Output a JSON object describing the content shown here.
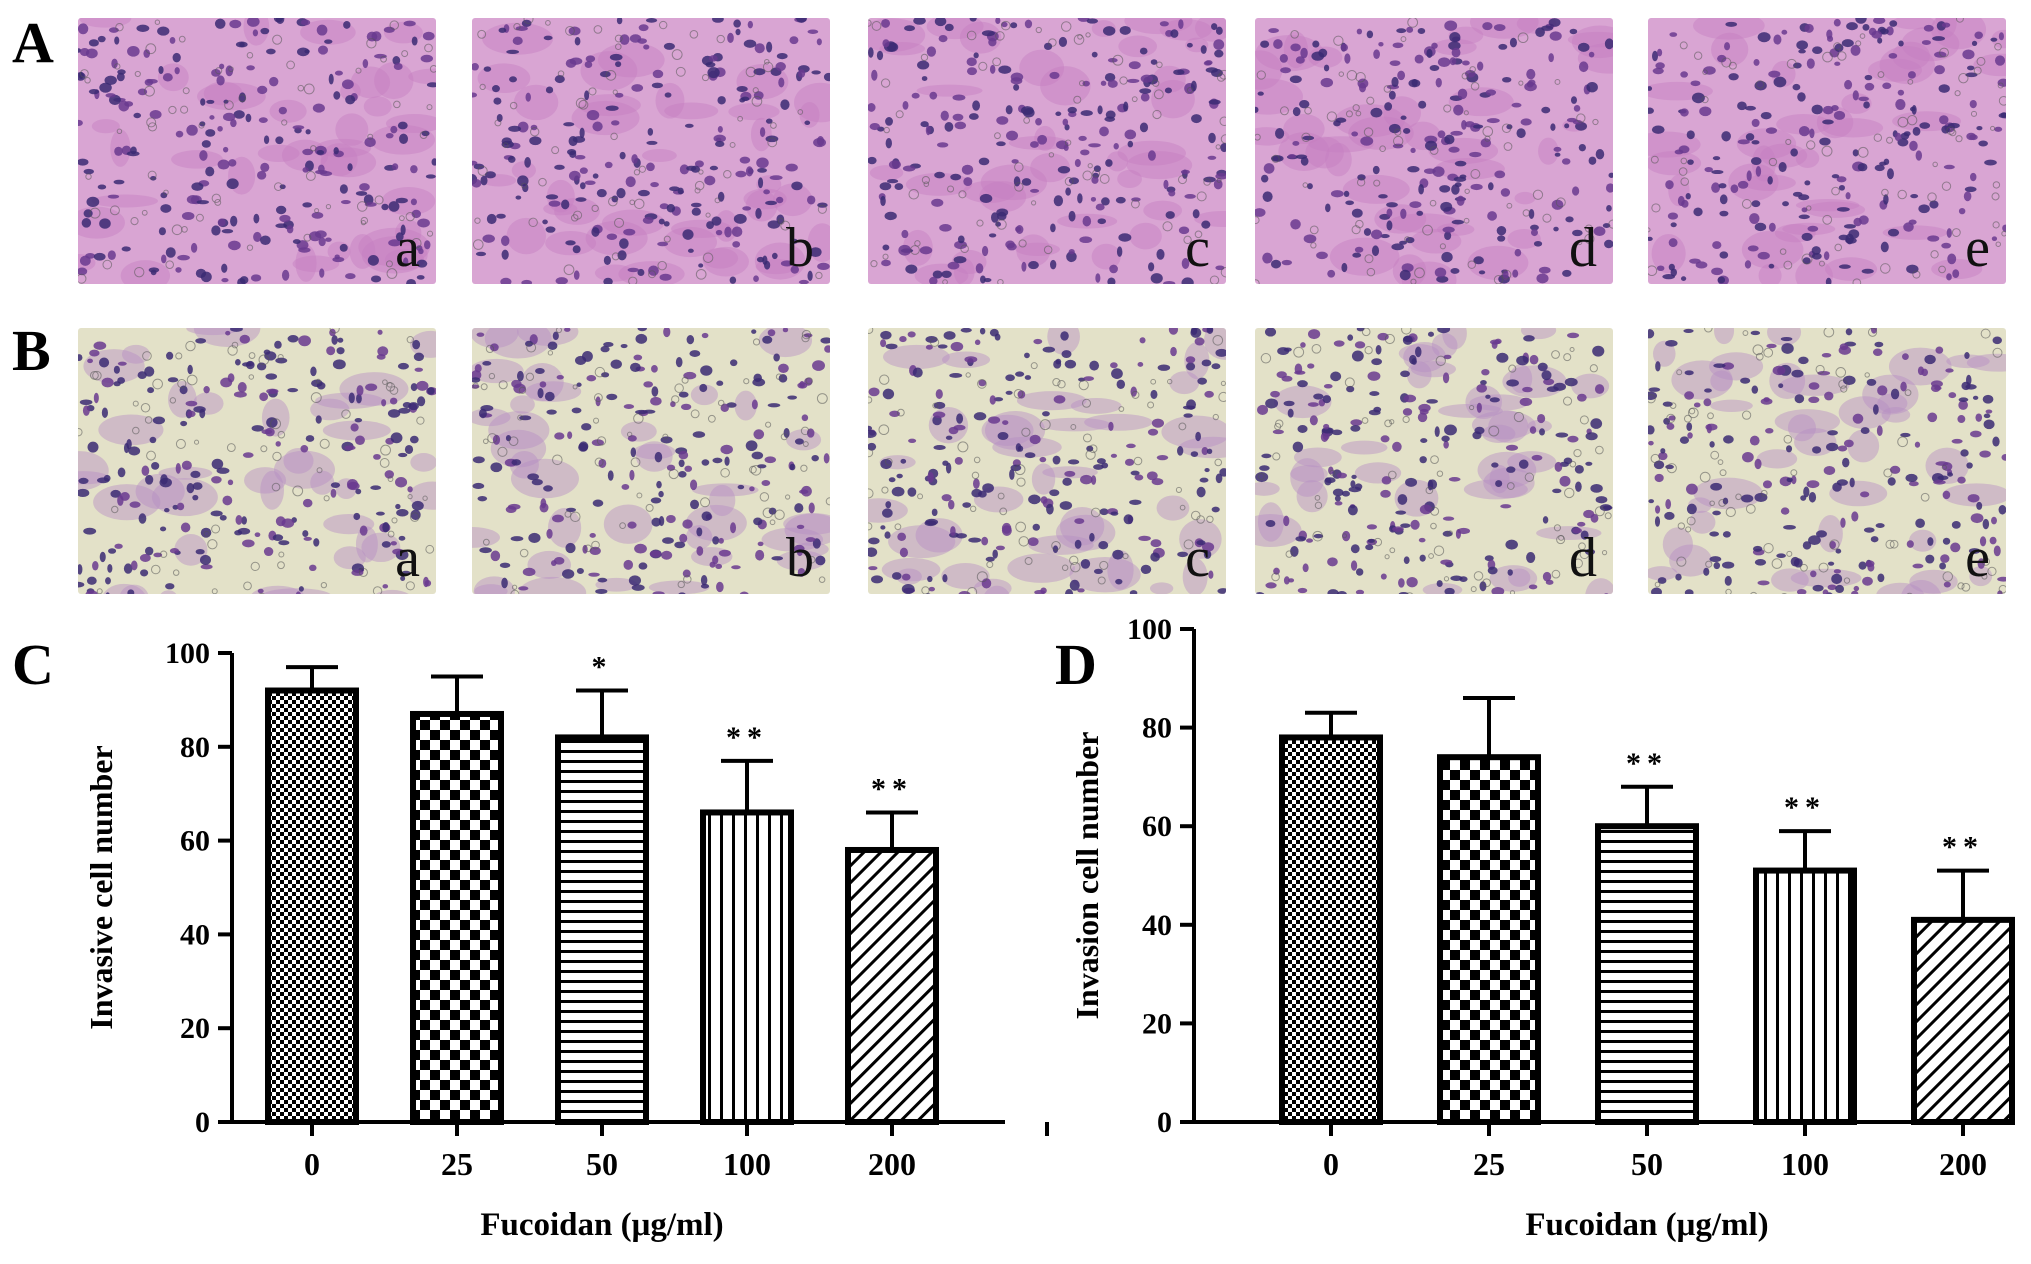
{
  "panel_labels": {
    "a": "A",
    "b": "B",
    "c": "C",
    "d": "D"
  },
  "micrograph_labels": [
    "a",
    "b",
    "c",
    "d",
    "e"
  ],
  "colors": {
    "stain": "#6a3a8f",
    "nucleus": "#3b2a73",
    "row_a_background": "#d9a5d3",
    "row_b_background": "#e3e1c8"
  },
  "chart_data": [
    {
      "type": "bar",
      "panel": "C",
      "categories": [
        "0",
        "25",
        "50",
        "100",
        "200"
      ],
      "values": [
        92,
        87,
        82,
        66,
        58
      ],
      "errors": [
        5,
        8,
        10,
        11,
        8
      ],
      "significance": [
        "",
        "",
        "*",
        "**",
        "**"
      ],
      "patterns": [
        "fine-checker",
        "checker",
        "horizontal-lines",
        "vertical-lines",
        "diagonal-lines"
      ],
      "xlabel": "Fucoidan (μg/ml)",
      "ylabel": "Invasive cell number",
      "ylim": [
        0,
        100
      ],
      "yticks": [
        "0",
        "20",
        "40",
        "60",
        "80",
        "100"
      ],
      "grid": false
    },
    {
      "type": "bar",
      "panel": "D",
      "categories": [
        "0",
        "25",
        "50",
        "100",
        "200"
      ],
      "values": [
        78,
        74,
        60,
        51,
        41
      ],
      "errors": [
        5,
        12,
        8,
        8,
        10
      ],
      "significance": [
        "",
        "",
        "**",
        "**",
        "**"
      ],
      "patterns": [
        "fine-checker",
        "checker",
        "horizontal-lines",
        "vertical-lines",
        "diagonal-lines"
      ],
      "xlabel": "Fucoidan (μg/ml)",
      "ylabel": "Invasion cell number",
      "ylim": [
        0,
        100
      ],
      "yticks": [
        "0",
        "20",
        "40",
        "60",
        "80",
        "100"
      ],
      "grid": false
    }
  ]
}
